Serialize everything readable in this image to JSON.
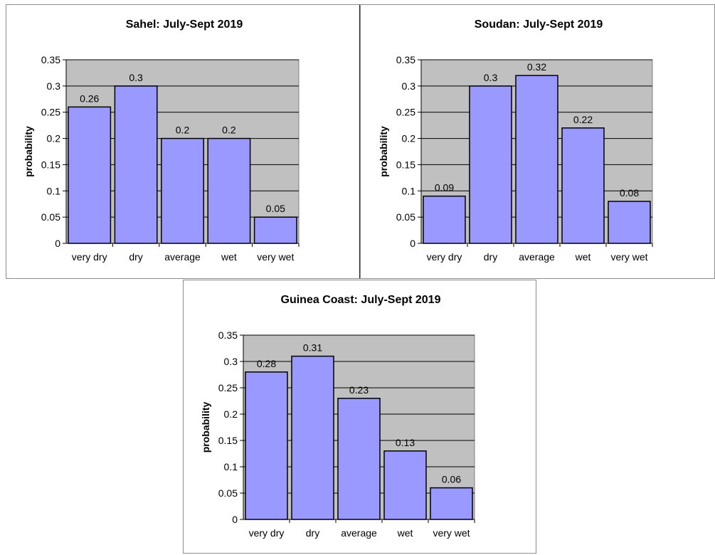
{
  "chart_data": [
    {
      "type": "bar",
      "title": "Sahel: July-Sept 2019",
      "ylabel": "probability",
      "xlabel": "",
      "categories": [
        "very dry",
        "dry",
        "average",
        "wet",
        "very wet"
      ],
      "values": [
        0.26,
        0.3,
        0.2,
        0.2,
        0.05
      ],
      "ylim": [
        0,
        0.35
      ],
      "yticks": [
        0,
        0.05,
        0.1,
        0.15,
        0.2,
        0.25,
        0.3,
        0.35
      ],
      "ytick_labels": [
        "0",
        "0.05",
        "0.1",
        "0.15",
        "0.2",
        "0.25",
        "0.3",
        "0.35"
      ],
      "data_labels": [
        "0.26",
        "0.3",
        "0.2",
        "0.2",
        "0.05"
      ],
      "grid": true,
      "colors": {
        "bar": "#9999ff",
        "plot_bg": "#c0c0c0",
        "grid": "#000000"
      }
    },
    {
      "type": "bar",
      "title": "Soudan: July-Sept 2019",
      "ylabel": "probability",
      "xlabel": "",
      "categories": [
        "very dry",
        "dry",
        "average",
        "wet",
        "very wet"
      ],
      "values": [
        0.09,
        0.3,
        0.32,
        0.22,
        0.08
      ],
      "ylim": [
        0,
        0.35
      ],
      "yticks": [
        0,
        0.05,
        0.1,
        0.15,
        0.2,
        0.25,
        0.3,
        0.35
      ],
      "ytick_labels": [
        "0",
        "0.05",
        "0.1",
        "0.15",
        "0.2",
        "0.25",
        "0.3",
        "0.35"
      ],
      "data_labels": [
        "0.09",
        "0.3",
        "0.32",
        "0.22",
        "0.08"
      ],
      "grid": true,
      "colors": {
        "bar": "#9999ff",
        "plot_bg": "#c0c0c0",
        "grid": "#000000"
      }
    },
    {
      "type": "bar",
      "title": "Guinea Coast: July-Sept 2019",
      "ylabel": "probability",
      "xlabel": "",
      "categories": [
        "very dry",
        "dry",
        "average",
        "wet",
        "very wet"
      ],
      "values": [
        0.28,
        0.31,
        0.23,
        0.13,
        0.06
      ],
      "ylim": [
        0,
        0.35
      ],
      "yticks": [
        0,
        0.05,
        0.1,
        0.15,
        0.2,
        0.25,
        0.3,
        0.35
      ],
      "ytick_labels": [
        "0",
        "0.05",
        "0.1",
        "0.15",
        "0.2",
        "0.25",
        "0.3",
        "0.35"
      ],
      "data_labels": [
        "0.28",
        "0.31",
        "0.23",
        "0.13",
        "0.06"
      ],
      "grid": true,
      "colors": {
        "bar": "#9999ff",
        "plot_bg": "#c0c0c0",
        "grid": "#000000"
      }
    }
  ]
}
